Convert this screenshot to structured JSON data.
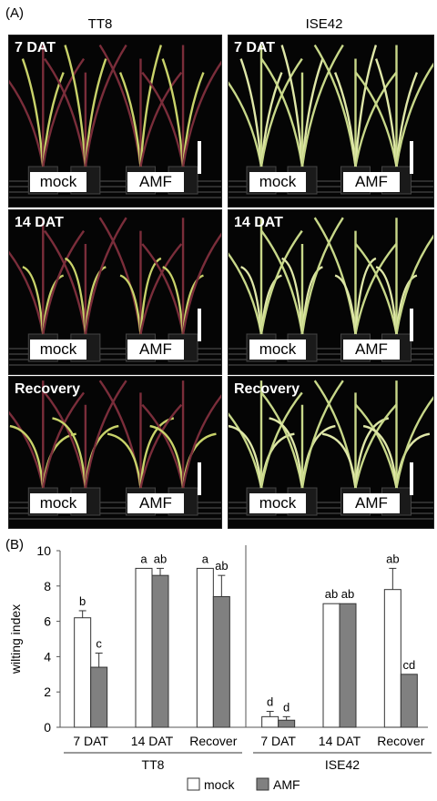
{
  "panels": {
    "a": "(A)",
    "b": "(B)"
  },
  "columns": {
    "left": "TT8",
    "right": "ISE42"
  },
  "photos": {
    "row1": "7 DAT",
    "row2": "14 DAT",
    "row3": "Recovery",
    "tag_mock": "mock",
    "tag_amf": "AMF"
  },
  "chart_data": {
    "type": "bar",
    "ylabel": "wilting index",
    "ylim": [
      0,
      10
    ],
    "yticks": [
      0,
      2,
      4,
      6,
      8,
      10
    ],
    "groups": [
      {
        "name": "TT8",
        "categories": [
          "7 DAT",
          "14 DAT",
          "Recover"
        ]
      },
      {
        "name": "ISE42",
        "categories": [
          "7 DAT",
          "14 DAT",
          "Recover"
        ]
      }
    ],
    "series": [
      {
        "name": "mock",
        "color": "#ffffff",
        "values": [
          6.2,
          9.0,
          9.0,
          0.6,
          7.0,
          7.8
        ],
        "errors": [
          0.4,
          0.0,
          0.0,
          0.3,
          0.0,
          1.2
        ],
        "letters": [
          "b",
          "a",
          "a",
          "d",
          "ab",
          "ab"
        ]
      },
      {
        "name": "AMF",
        "color": "#808080",
        "values": [
          3.4,
          8.6,
          7.4,
          0.4,
          7.0,
          3.0
        ],
        "errors": [
          0.8,
          0.4,
          1.2,
          0.2,
          0.0,
          0.0
        ],
        "letters": [
          "c",
          "ab",
          "ab",
          "d",
          "ab",
          "cd"
        ]
      }
    ],
    "legend": [
      "mock",
      "AMF"
    ],
    "legend_position": "bottom"
  }
}
